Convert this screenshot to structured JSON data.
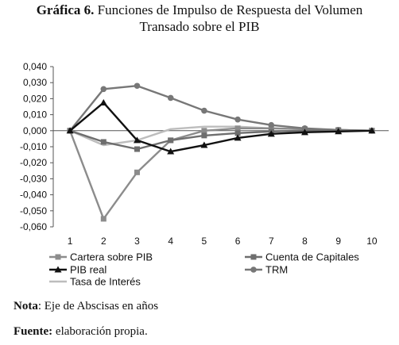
{
  "header": {
    "label": "Gráfica 6.",
    "title_line1": "Funciones de Impulso de Respuesta del Volumen",
    "title_line2": "Transado sobre el PIB"
  },
  "notes": {
    "nota_label": "Nota",
    "nota_text": ": Eje de Abscisas en años",
    "fuente_label": "Fuente:",
    "fuente_text": " elaboración propia."
  },
  "chart_data": {
    "type": "line",
    "title": "",
    "xlabel": "",
    "ylabel": "",
    "x": [
      1,
      2,
      3,
      4,
      5,
      6,
      7,
      8,
      9,
      10
    ],
    "x_tick_labels": [
      "1",
      "2",
      "3",
      "4",
      "5",
      "6",
      "7",
      "8",
      "9",
      "10"
    ],
    "ylim": [
      -0.06,
      0.04
    ],
    "y_ticks": [
      0.04,
      0.03,
      0.02,
      0.01,
      0.0,
      -0.01,
      -0.02,
      -0.03,
      -0.04,
      -0.05,
      -0.06
    ],
    "y_tick_labels": [
      "0,040",
      "0,030",
      "0,020",
      "0,010",
      "0,000",
      "-0,010",
      "-0,020",
      "-0,030",
      "-0,040",
      "-0,050",
      "-0,060"
    ],
    "grid": false,
    "legend_position": "bottom",
    "series": [
      {
        "name": "Cartera sobre PIB",
        "marker": "square",
        "color": "#8c8c8c",
        "values": [
          0.0,
          -0.055,
          -0.026,
          -0.006,
          0.0,
          0.0015,
          0.0015,
          0.001,
          0.0005,
          0.0
        ]
      },
      {
        "name": "Cuenta de Capitales",
        "marker": "square",
        "color": "#6e6e6e",
        "values": [
          0.0,
          -0.007,
          -0.0115,
          -0.006,
          -0.003,
          -0.0015,
          -0.0005,
          0.0,
          0.0,
          0.0
        ]
      },
      {
        "name": "PIB real",
        "marker": "triangle",
        "color": "#111111",
        "values": [
          0.0,
          0.0175,
          -0.006,
          -0.013,
          -0.009,
          -0.0045,
          -0.002,
          -0.001,
          -0.0005,
          0.0
        ]
      },
      {
        "name": "TRM",
        "marker": "circle",
        "color": "#777777",
        "values": [
          0.0,
          0.026,
          0.028,
          0.0205,
          0.0125,
          0.007,
          0.0035,
          0.0015,
          0.0005,
          0.0
        ]
      },
      {
        "name": "Tasa de Interés",
        "marker": "none",
        "color": "#bdbdbd",
        "values": [
          0.0,
          -0.009,
          -0.006,
          0.001,
          0.0025,
          0.0025,
          0.0015,
          0.001,
          0.0005,
          0.0
        ]
      }
    ]
  }
}
